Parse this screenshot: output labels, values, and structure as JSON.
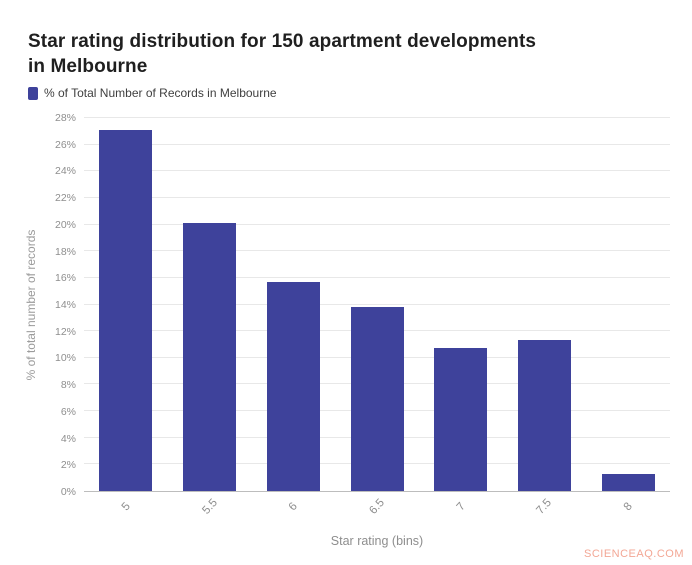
{
  "page": {
    "title_line1": "Star rating distribution for 150 apartment developments",
    "title_line2": "in Melbourne",
    "watermark": "SCIENCEAQ.COM"
  },
  "legend": {
    "label": "% of Total Number of Records in Melbourne",
    "swatch_color": "#3e429b"
  },
  "chart_data": {
    "type": "bar",
    "title": "Star rating distribution for 150 apartment developments in Melbourne",
    "series_name": "% of Total Number of Records in Melbourne",
    "categories": [
      "5",
      "5.5",
      "6",
      "6.5",
      "7",
      "7.5",
      "8"
    ],
    "values": [
      27.1,
      20.1,
      15.7,
      13.8,
      10.7,
      11.3,
      1.3
    ],
    "xlabel": "Star rating (bins)",
    "ylabel": "% of total number of records",
    "ylim": [
      0,
      28
    ],
    "ytick_step": 2,
    "ytick_suffix": "%",
    "bar_color": "#3e429b",
    "grid": true,
    "legend_position": "top-left"
  }
}
